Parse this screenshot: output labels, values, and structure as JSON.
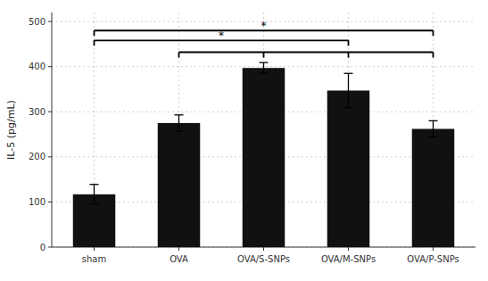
{
  "chart_data": {
    "type": "bar",
    "categories": [
      "sham",
      "OVA",
      "OVA/S-SNPs",
      "OVA/M-SNPs",
      "OVA/P-SNPs"
    ],
    "values": [
      117,
      275,
      397,
      347,
      262
    ],
    "errors": [
      22,
      18,
      12,
      38,
      18
    ],
    "color": "#111111",
    "y_label": "IL-5 (pg/mL)",
    "ylim": [
      0,
      520
    ],
    "yticks": [
      0,
      100,
      200,
      300,
      400,
      500
    ],
    "grid": true,
    "annotations": [
      {
        "text": "*",
        "x": [
          "sham",
          "OVA/P-SNPs"
        ],
        "y": 480
      },
      {
        "text": "*",
        "x": [
          "sham",
          "OVA/M-SNPs"
        ],
        "y": 458
      },
      {
        "x": [
          "OVA",
          "OVA/S-SNPs",
          "OVA/M-SNPs",
          "OVA/P-SNPs"
        ],
        "y": 432
      }
    ]
  }
}
